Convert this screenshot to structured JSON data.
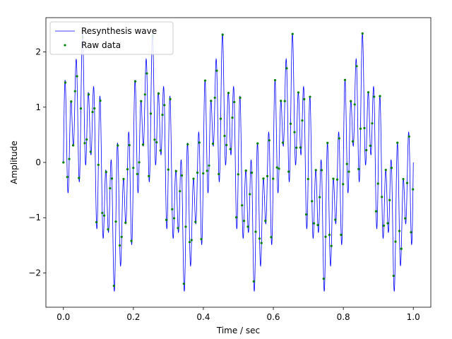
{
  "chart_data": {
    "type": "line",
    "title": "",
    "xlabel": "Time / sec",
    "ylabel": "Amplitude",
    "xlim": [
      -0.05,
      1.05
    ],
    "ylim": [
      -2.62,
      2.62
    ],
    "xticks": [
      0.0,
      0.2,
      0.4,
      0.6,
      0.8,
      1.0
    ],
    "xtick_labels": [
      "0.0",
      "0.2",
      "0.4",
      "0.6",
      "0.8",
      "1.0"
    ],
    "yticks": [
      -2,
      -1,
      0,
      1,
      2
    ],
    "ytick_labels": [
      "−2",
      "−1",
      "0",
      "1",
      "2"
    ],
    "grid": false,
    "legend": {
      "position": "top-left",
      "entries": [
        {
          "label": "Resynthesis wave",
          "marker": "line",
          "color": "#0000ff"
        },
        {
          "label": "Raw data",
          "marker": "dot",
          "color": "#008000"
        }
      ]
    },
    "series": [
      {
        "name": "Resynthesis wave",
        "kind": "line",
        "color": "#0000ff",
        "signal_model": {
          "components": [
            {
              "frequency_hz": 5,
              "amplitude": 1.0,
              "phase": 0.0
            },
            {
              "frequency_hz": 40,
              "amplitude": 0.5,
              "phase": 0.0
            },
            {
              "frequency_hz": 60,
              "amplitude": 0.9,
              "phase": 0.0
            }
          ],
          "t_start": 0.0,
          "t_end": 1.0,
          "sample_count": 2000
        }
      },
      {
        "name": "Raw data",
        "kind": "scatter",
        "color": "#008000",
        "sampling": {
          "t_start": 0.0,
          "t_step": 0.00555,
          "t_end": 1.0
        }
      }
    ]
  }
}
